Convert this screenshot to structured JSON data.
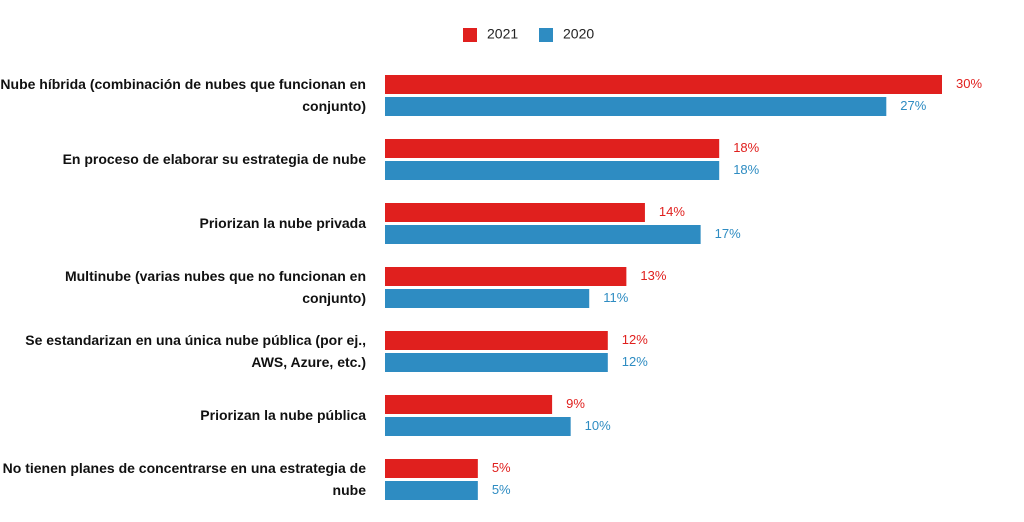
{
  "chart_data": {
    "type": "hbar",
    "categories": [
      "Nube híbrida (combinación de nubes que funcionan en conjunto)",
      "En proceso de elaborar su estrategia de nube",
      "Priorizan la nube privada",
      "Multinube (varias nubes que no funcionan en conjunto)",
      "Se estandarizan en una única nube pública (por ej., AWS, Azure, etc.)",
      "Priorizan la nube pública",
      "No tienen planes de concentrarse en una estrategia de nube"
    ],
    "series": [
      {
        "name": "2021",
        "color": "#e0201e",
        "values": [
          30,
          18,
          14,
          13,
          12,
          9,
          5
        ],
        "value_labels": [
          "30%",
          "18%",
          "14%",
          "13%",
          "12%",
          "9%",
          "5%"
        ]
      },
      {
        "name": "2020",
        "color": "#2e8cc2",
        "values": [
          27,
          18,
          17,
          11,
          12,
          10,
          5
        ],
        "value_labels": [
          "27%",
          "18%",
          "17%",
          "11%",
          "12%",
          "10%",
          "5%"
        ]
      }
    ],
    "xlim": [
      0,
      30
    ],
    "legend": "top"
  }
}
